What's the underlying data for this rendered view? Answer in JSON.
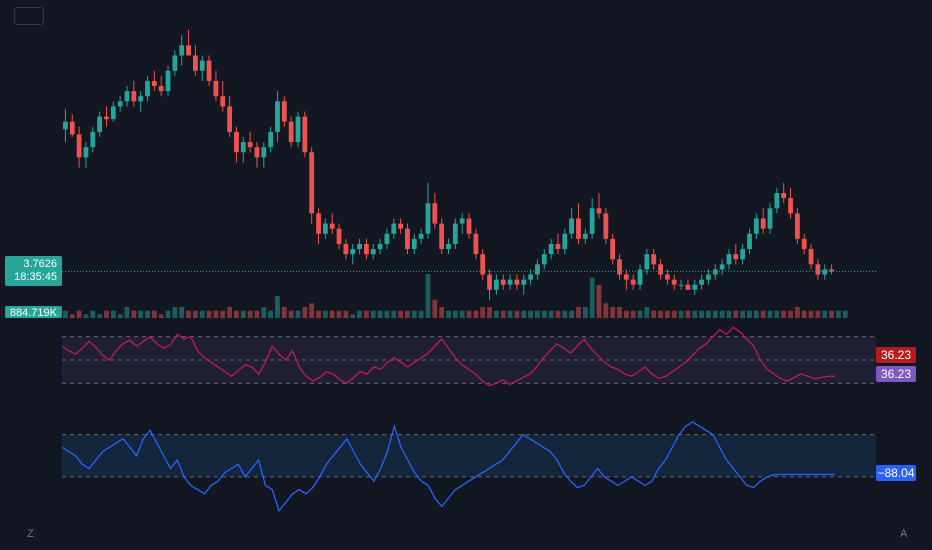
{
  "toolbar": {
    "button_label": ""
  },
  "price_badge": {
    "price": "3.7626",
    "countdown": "18:35:45"
  },
  "volume_badge": {
    "value": "884.719K"
  },
  "indicator1_badges": {
    "value_a": "36.23",
    "value_b": "36.23"
  },
  "indicator2_badge": {
    "value": "−88.04"
  },
  "corners": {
    "left": "Z",
    "right": "A"
  },
  "colors": {
    "background": "#131722",
    "up": "#26a69a",
    "down": "#ef5350",
    "rsi_line": "#c2185b",
    "rsi_badge_a": "#b71c1c",
    "rsi_badge_b": "#7e57c2",
    "rsi_band": "#7e57c2",
    "osc_line": "#2962ff",
    "osc_band": "#2196f3",
    "guide": "#787b86"
  },
  "chart_data": [
    {
      "type": "candlestick",
      "title": "",
      "last_price": 3.7626,
      "ylim": [
        3.2,
        8.5
      ],
      "candles": [
        [
          6.55,
          6.95,
          6.3,
          6.7
        ],
        [
          6.7,
          6.85,
          6.4,
          6.45
        ],
        [
          6.45,
          6.6,
          5.8,
          6.0
        ],
        [
          6.0,
          6.3,
          5.8,
          6.2
        ],
        [
          6.2,
          6.6,
          6.1,
          6.5
        ],
        [
          6.5,
          6.9,
          6.4,
          6.8
        ],
        [
          6.8,
          7.0,
          6.6,
          6.75
        ],
        [
          6.75,
          7.1,
          6.7,
          7.0
        ],
        [
          7.0,
          7.2,
          6.9,
          7.1
        ],
        [
          7.1,
          7.4,
          7.0,
          7.3
        ],
        [
          7.3,
          7.5,
          7.0,
          7.1
        ],
        [
          7.1,
          7.3,
          6.9,
          7.2
        ],
        [
          7.2,
          7.6,
          7.1,
          7.5
        ],
        [
          7.5,
          7.7,
          7.3,
          7.4
        ],
        [
          7.4,
          7.6,
          7.2,
          7.3
        ],
        [
          7.3,
          7.8,
          7.2,
          7.7
        ],
        [
          7.7,
          8.1,
          7.6,
          8.0
        ],
        [
          8.0,
          8.4,
          7.8,
          8.2
        ],
        [
          8.2,
          8.5,
          8.0,
          8.0
        ],
        [
          8.0,
          8.2,
          7.6,
          7.7
        ],
        [
          7.7,
          8.0,
          7.5,
          7.9
        ],
        [
          7.9,
          8.0,
          7.4,
          7.5
        ],
        [
          7.5,
          7.7,
          7.1,
          7.2
        ],
        [
          7.2,
          7.5,
          6.9,
          7.0
        ],
        [
          7.0,
          7.2,
          6.4,
          6.5
        ],
        [
          6.5,
          6.6,
          5.9,
          6.1
        ],
        [
          6.1,
          6.4,
          5.9,
          6.3
        ],
        [
          6.3,
          6.5,
          6.1,
          6.2
        ],
        [
          6.2,
          6.3,
          5.8,
          6.0
        ],
        [
          6.0,
          6.3,
          5.8,
          6.2
        ],
        [
          6.2,
          6.6,
          6.1,
          6.5
        ],
        [
          6.5,
          7.3,
          6.3,
          7.1
        ],
        [
          7.1,
          7.2,
          6.6,
          6.7
        ],
        [
          6.7,
          6.8,
          6.2,
          6.3
        ],
        [
          6.3,
          6.9,
          6.2,
          6.8
        ],
        [
          6.8,
          6.9,
          6.0,
          6.1
        ],
        [
          6.1,
          6.2,
          4.7,
          4.9
        ],
        [
          4.9,
          5.0,
          4.3,
          4.5
        ],
        [
          4.5,
          4.8,
          4.4,
          4.7
        ],
        [
          4.7,
          4.9,
          4.5,
          4.6
        ],
        [
          4.6,
          4.7,
          4.2,
          4.3
        ],
        [
          4.3,
          4.4,
          4.0,
          4.1
        ],
        [
          4.1,
          4.3,
          3.9,
          4.2
        ],
        [
          4.2,
          4.4,
          4.1,
          4.3
        ],
        [
          4.3,
          4.4,
          4.0,
          4.1
        ],
        [
          4.1,
          4.3,
          4.0,
          4.2
        ],
        [
          4.2,
          4.4,
          4.1,
          4.3
        ],
        [
          4.3,
          4.6,
          4.2,
          4.5
        ],
        [
          4.5,
          4.8,
          4.4,
          4.7
        ],
        [
          4.7,
          4.8,
          4.5,
          4.6
        ],
        [
          4.6,
          4.7,
          4.1,
          4.2
        ],
        [
          4.2,
          4.5,
          4.1,
          4.4
        ],
        [
          4.4,
          4.6,
          4.3,
          4.5
        ],
        [
          4.5,
          5.5,
          4.4,
          5.1
        ],
        [
          5.1,
          5.3,
          4.6,
          4.7
        ],
        [
          4.7,
          4.8,
          4.1,
          4.2
        ],
        [
          4.2,
          4.4,
          4.1,
          4.3
        ],
        [
          4.3,
          4.8,
          4.2,
          4.7
        ],
        [
          4.7,
          4.9,
          4.5,
          4.8
        ],
        [
          4.8,
          4.9,
          4.4,
          4.5
        ],
        [
          4.5,
          4.6,
          4.0,
          4.1
        ],
        [
          4.1,
          4.2,
          3.6,
          3.7
        ],
        [
          3.7,
          3.8,
          3.2,
          3.4
        ],
        [
          3.4,
          3.7,
          3.3,
          3.6
        ],
        [
          3.6,
          3.7,
          3.4,
          3.5
        ],
        [
          3.5,
          3.7,
          3.4,
          3.6
        ],
        [
          3.6,
          3.7,
          3.4,
          3.5
        ],
        [
          3.5,
          3.7,
          3.3,
          3.6
        ],
        [
          3.6,
          3.8,
          3.5,
          3.7
        ],
        [
          3.7,
          4.0,
          3.6,
          3.9
        ],
        [
          3.9,
          4.2,
          3.8,
          4.1
        ],
        [
          4.1,
          4.4,
          4.0,
          4.3
        ],
        [
          4.3,
          4.5,
          4.1,
          4.2
        ],
        [
          4.2,
          4.6,
          4.1,
          4.5
        ],
        [
          4.5,
          5.0,
          4.4,
          4.8
        ],
        [
          4.8,
          5.1,
          4.3,
          4.4
        ],
        [
          4.4,
          4.6,
          4.3,
          4.5
        ],
        [
          4.5,
          5.2,
          4.4,
          5.0
        ],
        [
          5.0,
          5.3,
          4.8,
          4.9
        ],
        [
          4.9,
          5.0,
          4.3,
          4.4
        ],
        [
          4.4,
          4.5,
          3.9,
          4.0
        ],
        [
          4.0,
          4.1,
          3.6,
          3.7
        ],
        [
          3.7,
          3.8,
          3.4,
          3.6
        ],
        [
          3.6,
          3.7,
          3.4,
          3.5
        ],
        [
          3.5,
          3.9,
          3.4,
          3.8
        ],
        [
          3.8,
          4.2,
          3.7,
          4.1
        ],
        [
          4.1,
          4.2,
          3.8,
          3.9
        ],
        [
          3.9,
          4.0,
          3.6,
          3.7
        ],
        [
          3.7,
          3.8,
          3.5,
          3.6
        ],
        [
          3.6,
          3.7,
          3.4,
          3.5
        ],
        [
          3.5,
          3.6,
          3.4,
          3.5
        ],
        [
          3.5,
          3.6,
          3.4,
          3.4
        ],
        [
          3.4,
          3.6,
          3.3,
          3.5
        ],
        [
          3.5,
          3.7,
          3.4,
          3.6
        ],
        [
          3.6,
          3.8,
          3.5,
          3.7
        ],
        [
          3.7,
          3.9,
          3.6,
          3.8
        ],
        [
          3.8,
          4.0,
          3.7,
          3.9
        ],
        [
          3.9,
          4.2,
          3.8,
          4.1
        ],
        [
          4.1,
          4.3,
          3.9,
          4.0
        ],
        [
          4.0,
          4.3,
          3.9,
          4.2
        ],
        [
          4.2,
          4.6,
          4.1,
          4.5
        ],
        [
          4.5,
          4.9,
          4.4,
          4.8
        ],
        [
          4.8,
          5.0,
          4.5,
          4.6
        ],
        [
          4.6,
          5.1,
          4.5,
          5.0
        ],
        [
          5.0,
          5.4,
          4.9,
          5.3
        ],
        [
          5.3,
          5.5,
          5.1,
          5.2
        ],
        [
          5.2,
          5.4,
          4.8,
          4.9
        ],
        [
          4.9,
          5.0,
          4.3,
          4.4
        ],
        [
          4.4,
          4.5,
          4.1,
          4.2
        ],
        [
          4.2,
          4.3,
          3.8,
          3.9
        ],
        [
          3.9,
          4.0,
          3.6,
          3.7
        ],
        [
          3.7,
          3.9,
          3.6,
          3.8
        ],
        [
          3.8,
          3.9,
          3.7,
          3.76
        ]
      ]
    },
    {
      "type": "bar",
      "title": "Volume",
      "last_value": "884.719K",
      "values": [
        2,
        1,
        2,
        1,
        2,
        1,
        2,
        2,
        1,
        3,
        2,
        2,
        2,
        2,
        1,
        2,
        3,
        3,
        2,
        2,
        2,
        2,
        2,
        2,
        3,
        2,
        2,
        2,
        2,
        3,
        2,
        6,
        3,
        2,
        2,
        3,
        4,
        2,
        2,
        2,
        2,
        2,
        1,
        2,
        2,
        2,
        2,
        2,
        2,
        2,
        2,
        2,
        2,
        12,
        5,
        3,
        2,
        2,
        2,
        2,
        2,
        3,
        3,
        2,
        2,
        2,
        2,
        2,
        2,
        2,
        2,
        2,
        2,
        2,
        2,
        3,
        3,
        11,
        9,
        4,
        3,
        3,
        2,
        2,
        2,
        3,
        2,
        2,
        2,
        2,
        2,
        2,
        2,
        2,
        2,
        2,
        2,
        2,
        2,
        2,
        2,
        2,
        2,
        2,
        2,
        2,
        2,
        3,
        2,
        2,
        2,
        2,
        2,
        2,
        2
      ],
      "ylim": [
        0,
        12
      ]
    },
    {
      "type": "line",
      "title": "",
      "last_value": 36.23,
      "levels": [
        70,
        50,
        30
      ],
      "ylim": [
        20,
        80
      ],
      "values": [
        62,
        58,
        55,
        60,
        66,
        61,
        54,
        50,
        58,
        64,
        67,
        62,
        66,
        70,
        64,
        60,
        63,
        72,
        68,
        70,
        58,
        52,
        48,
        44,
        40,
        36,
        41,
        46,
        44,
        38,
        48,
        62,
        55,
        50,
        58,
        44,
        36,
        32,
        35,
        40,
        38,
        33,
        30,
        35,
        40,
        38,
        44,
        42,
        48,
        52,
        48,
        44,
        48,
        52,
        56,
        62,
        68,
        60,
        52,
        46,
        42,
        38,
        32,
        28,
        30,
        33,
        29,
        32,
        35,
        38,
        44,
        52,
        58,
        64,
        60,
        56,
        62,
        68,
        60,
        54,
        48,
        44,
        42,
        38,
        36,
        40,
        44,
        38,
        34,
        36,
        40,
        44,
        48,
        54,
        60,
        64,
        70,
        76,
        72,
        78,
        74,
        68,
        62,
        50,
        42,
        38,
        34,
        32,
        35,
        38,
        36,
        34,
        35,
        36,
        36.23
      ]
    },
    {
      "type": "line",
      "title": "",
      "last_value": -88.04,
      "levels": [
        100,
        -100
      ],
      "ylim": [
        -280,
        240
      ],
      "values": [
        40,
        20,
        0,
        -40,
        -60,
        -20,
        20,
        40,
        60,
        80,
        40,
        0,
        80,
        120,
        60,
        0,
        -60,
        -20,
        -100,
        -140,
        -160,
        -180,
        -140,
        -120,
        -80,
        -60,
        -40,
        -100,
        -60,
        -20,
        -140,
        -160,
        -260,
        -220,
        -180,
        -160,
        -180,
        -150,
        -100,
        -40,
        0,
        40,
        80,
        20,
        -40,
        -80,
        -120,
        -60,
        20,
        140,
        40,
        -20,
        -80,
        -120,
        -140,
        -200,
        -240,
        -200,
        -160,
        -140,
        -120,
        -100,
        -80,
        -60,
        -40,
        -20,
        20,
        60,
        100,
        80,
        60,
        40,
        20,
        -20,
        -80,
        -120,
        -150,
        -140,
        -100,
        -60,
        -100,
        -120,
        -140,
        -120,
        -100,
        -120,
        -140,
        -120,
        -60,
        -20,
        40,
        100,
        140,
        160,
        140,
        120,
        100,
        40,
        -20,
        -60,
        -100,
        -140,
        -150,
        -120,
        -100,
        -90,
        -88.04,
        -88.04,
        -88.04,
        -88.04,
        -88.04,
        -88.04,
        -88.04,
        -88.04,
        -88.04
      ]
    }
  ]
}
